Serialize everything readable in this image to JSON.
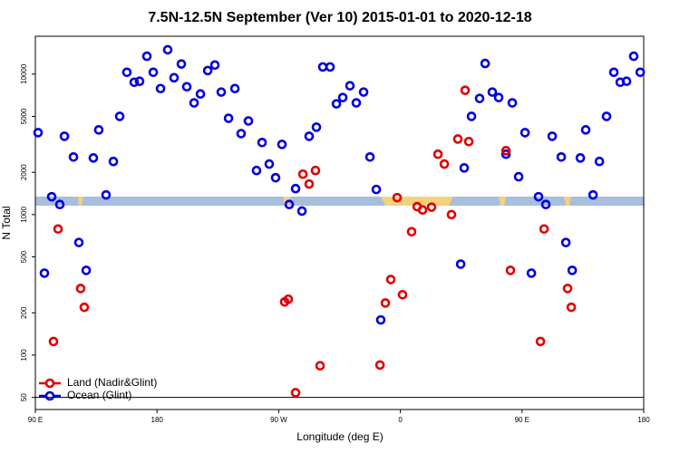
{
  "chart_data": {
    "type": "scatter",
    "title": "7.5N-12.5N September (Ver 10)   2015-01-01 to 2020-12-18",
    "x_label": "Longitude (deg E)",
    "y_label": "N Total",
    "xlim": [
      90,
      540
    ],
    "xticks": [
      {
        "value": 90,
        "label": "90 E"
      },
      180,
      {
        "value": 270,
        "label": "90 W"
      },
      {
        "value": 360,
        "label": "0"
      },
      {
        "value": 450,
        "label": "90 E"
      },
      {
        "value": 540,
        "label": "180"
      }
    ],
    "ylim": [
      41,
      18600
    ],
    "yticks": [
      50,
      100,
      200,
      500,
      1000,
      2000,
      5000,
      10000
    ],
    "log_y": true,
    "legend": "lower left",
    "series": [
      {
        "name": "Ocean (Glint)",
        "color": "#0000e0",
        "x": [
          92.0,
          96.7,
          102.1,
          108.1,
          111.5,
          118.2,
          122.2,
          127.6,
          132.9,
          136.9,
          142.3,
          147.7,
          152.4,
          157.7,
          163.1,
          167.1,
          172.5,
          177.2,
          182.6,
          187.9,
          192.6,
          198.0,
          202.0,
          207.4,
          212.1,
          217.5,
          222.8,
          227.5,
          232.9,
          237.6,
          242.2,
          247.6,
          253.6,
          257.7,
          263.0,
          267.7,
          272.4,
          277.8,
          282.5,
          287.2,
          292.5,
          297.9,
          302.6,
          308.0,
          312.7,
          317.4,
          322.7,
          327.4,
          332.8,
          337.5,
          342.2,
          345.5,
          404.6,
          407.2,
          412.6,
          418.6,
          422.7,
          428.0,
          432.7,
          438.1,
          442.8,
          447.5,
          452.2,
          456.9,
          462.2,
          467.6,
          472.3,
          479.0,
          482.4,
          487.1,
          493.1,
          497.1,
          502.5,
          507.2,
          512.5,
          517.9,
          522.6,
          527.3,
          532.6,
          537.4
        ],
        "values": [
          3830,
          383,
          1340,
          1180,
          3610,
          2570,
          633,
          401,
          2530,
          4010,
          1380,
          2390,
          5000,
          10300,
          8750,
          8890,
          13400,
          10300,
          7890,
          14900,
          9420,
          11800,
          8130,
          6240,
          7220,
          10600,
          11600,
          7450,
          4850,
          7890,
          3770,
          4640,
          2060,
          3260,
          2290,
          1830,
          3160,
          1180,
          1530,
          1060,
          3610,
          4190,
          11250,
          11250,
          6140,
          6810,
          8260,
          6240,
          7450,
          2570,
          1510,
          178,
          444,
          2150,
          5000,
          6710,
          11900,
          7450,
          6810,
          2690,
          6240,
          1860,
          3830,
          383,
          1340,
          1180,
          3610,
          2570,
          633,
          401,
          2530,
          4010,
          1380,
          2390,
          5000,
          10300,
          8750,
          8890,
          13400,
          10300
        ]
      },
      {
        "name": "Land (Nadir&Glint)",
        "color": "#e00000",
        "x": [
          103.4,
          106.8,
          123.5,
          126.2,
          274.4,
          277.1,
          282.5,
          287.9,
          292.5,
          297.2,
          300.6,
          344.9,
          348.9,
          352.9,
          357.6,
          361.6,
          368.3,
          372.4,
          376.4,
          383.1,
          387.8,
          392.5,
          397.8,
          402.5,
          407.9,
          410.6,
          438.1,
          441.4,
          463.6,
          466.3,
          483.7,
          486.4
        ],
        "values": [
          125,
          790,
          298,
          219,
          239,
          250,
          54,
          1940,
          1650,
          2060,
          84,
          85,
          235,
          345,
          1320,
          269,
          755,
          1140,
          1080,
          1130,
          2690,
          2290,
          1000,
          3450,
          7670,
          3310,
          2850,
          401,
          125,
          790,
          298,
          219
        ]
      }
    ]
  }
}
